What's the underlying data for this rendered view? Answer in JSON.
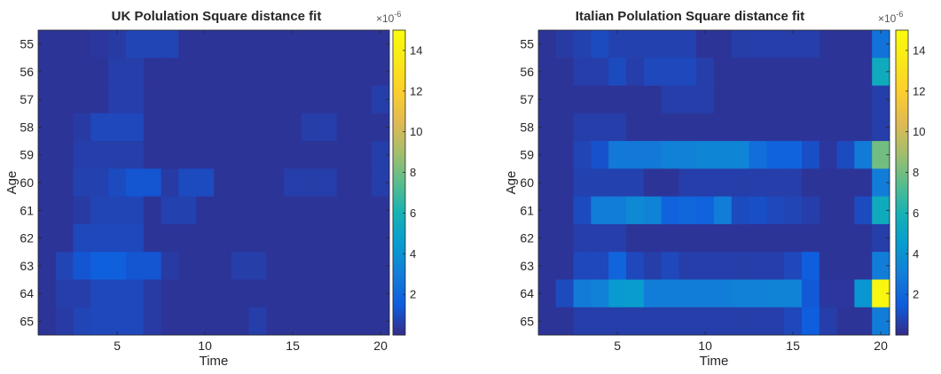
{
  "chart_data": [
    {
      "type": "heatmap",
      "title": "UK Polulation Square distance fit",
      "xlabel": "Time",
      "ylabel": "Age",
      "x_ticks": [
        5,
        10,
        15,
        20
      ],
      "y_labels": [
        "55",
        "56",
        "57",
        "58",
        "59",
        "60",
        "61",
        "62",
        "63",
        "64",
        "65"
      ],
      "colorbar_ticks": [
        "2",
        "4",
        "6",
        "8",
        "10",
        "12",
        "14"
      ],
      "colorbar_exponent": "×10",
      "colorbar_exponent_power": "-6",
      "colorbar_range": [
        0,
        15
      ],
      "colormap": "parula",
      "values": [
        [
          0.3,
          0.3,
          0.3,
          0.4,
          0.5,
          0.8,
          0.8,
          0.8,
          0.3,
          0.3,
          0.3,
          0.3,
          0.3,
          0.3,
          0.3,
          0.3,
          0.3,
          0.3,
          0.3,
          0.3
        ],
        [
          0.3,
          0.3,
          0.3,
          0.3,
          0.6,
          0.6,
          0.3,
          0.3,
          0.3,
          0.3,
          0.3,
          0.3,
          0.3,
          0.3,
          0.3,
          0.3,
          0.3,
          0.3,
          0.3,
          0.3
        ],
        [
          0.3,
          0.3,
          0.3,
          0.3,
          0.6,
          0.6,
          0.3,
          0.3,
          0.3,
          0.3,
          0.3,
          0.3,
          0.3,
          0.3,
          0.3,
          0.3,
          0.3,
          0.3,
          0.3,
          0.6
        ],
        [
          0.3,
          0.3,
          0.5,
          0.9,
          0.9,
          0.9,
          0.3,
          0.3,
          0.3,
          0.3,
          0.3,
          0.3,
          0.3,
          0.3,
          0.3,
          0.6,
          0.6,
          0.3,
          0.3,
          0.3
        ],
        [
          0.3,
          0.3,
          0.6,
          0.6,
          0.6,
          0.6,
          0.3,
          0.3,
          0.3,
          0.3,
          0.3,
          0.3,
          0.3,
          0.3,
          0.3,
          0.3,
          0.3,
          0.3,
          0.3,
          0.6
        ],
        [
          0.3,
          0.3,
          0.7,
          0.7,
          1.0,
          1.3,
          1.3,
          0.5,
          1.0,
          1.0,
          0.3,
          0.3,
          0.3,
          0.3,
          0.6,
          0.6,
          0.6,
          0.3,
          0.3,
          0.6
        ],
        [
          0.3,
          0.3,
          0.5,
          0.8,
          0.8,
          0.8,
          0.3,
          0.7,
          0.7,
          0.3,
          0.3,
          0.3,
          0.3,
          0.3,
          0.3,
          0.3,
          0.3,
          0.3,
          0.3,
          0.3
        ],
        [
          0.3,
          0.3,
          0.9,
          0.9,
          0.9,
          0.9,
          0.3,
          0.3,
          0.3,
          0.3,
          0.3,
          0.3,
          0.3,
          0.3,
          0.3,
          0.3,
          0.3,
          0.3,
          0.3,
          0.3
        ],
        [
          0.3,
          0.8,
          1.3,
          1.7,
          1.7,
          1.3,
          1.3,
          0.5,
          0.3,
          0.3,
          0.3,
          0.6,
          0.6,
          0.3,
          0.3,
          0.3,
          0.3,
          0.3,
          0.3,
          0.3
        ],
        [
          0.3,
          0.6,
          0.6,
          0.9,
          0.9,
          0.9,
          0.5,
          0.3,
          0.3,
          0.3,
          0.3,
          0.3,
          0.3,
          0.3,
          0.3,
          0.3,
          0.3,
          0.3,
          0.3,
          0.3
        ],
        [
          0.3,
          0.5,
          0.8,
          0.9,
          0.9,
          0.9,
          0.5,
          0.3,
          0.3,
          0.3,
          0.3,
          0.3,
          0.6,
          0.3,
          0.3,
          0.3,
          0.3,
          0.3,
          0.3,
          0.3
        ]
      ]
    },
    {
      "type": "heatmap",
      "title": "Italian Polulation Square distance fit",
      "xlabel": "Time",
      "ylabel": "Age",
      "x_ticks": [
        5,
        10,
        15,
        20
      ],
      "y_labels": [
        "55",
        "56",
        "57",
        "58",
        "59",
        "60",
        "61",
        "62",
        "63",
        "64",
        "65"
      ],
      "colorbar_ticks": [
        "2",
        "4",
        "6",
        "8",
        "10",
        "12",
        "14"
      ],
      "colorbar_exponent": "×10",
      "colorbar_exponent_power": "-6",
      "colorbar_range": [
        0,
        15
      ],
      "colormap": "parula",
      "values": [
        [
          0.3,
          0.5,
          0.7,
          1.0,
          0.7,
          0.7,
          0.7,
          0.7,
          0.7,
          0.3,
          0.3,
          0.6,
          0.6,
          0.6,
          0.6,
          0.6,
          0.3,
          0.3,
          0.3,
          2.5
        ],
        [
          0.3,
          0.3,
          0.6,
          0.6,
          1.0,
          0.6,
          0.9,
          0.9,
          0.9,
          0.6,
          0.3,
          0.3,
          0.3,
          0.3,
          0.3,
          0.3,
          0.3,
          0.3,
          0.3,
          5.5
        ],
        [
          0.3,
          0.3,
          0.3,
          0.3,
          0.3,
          0.3,
          0.3,
          0.6,
          0.6,
          0.6,
          0.3,
          0.3,
          0.3,
          0.3,
          0.3,
          0.3,
          0.3,
          0.3,
          0.3,
          0.6
        ],
        [
          0.3,
          0.3,
          0.6,
          0.6,
          0.6,
          0.3,
          0.3,
          0.3,
          0.3,
          0.3,
          0.3,
          0.3,
          0.3,
          0.3,
          0.3,
          0.3,
          0.3,
          0.3,
          0.3,
          0.6
        ],
        [
          0.3,
          0.3,
          0.8,
          1.2,
          2.8,
          2.8,
          2.8,
          3.2,
          3.2,
          3.4,
          3.4,
          3.4,
          2.3,
          1.8,
          1.8,
          1.1,
          0.4,
          1.0,
          2.9,
          8.0
        ],
        [
          0.3,
          0.3,
          0.7,
          0.7,
          0.7,
          0.7,
          0.3,
          0.3,
          0.6,
          0.6,
          0.6,
          0.6,
          0.6,
          0.6,
          0.6,
          0.3,
          0.3,
          0.3,
          0.3,
          3.0
        ],
        [
          0.3,
          0.3,
          1.0,
          3.0,
          3.0,
          3.6,
          3.3,
          1.8,
          2.0,
          1.8,
          3.0,
          1.0,
          1.1,
          0.9,
          0.8,
          0.6,
          0.3,
          0.3,
          1.0,
          5.5
        ],
        [
          0.3,
          0.3,
          0.6,
          0.6,
          0.6,
          0.3,
          0.3,
          0.3,
          0.3,
          0.3,
          0.3,
          0.3,
          0.3,
          0.3,
          0.3,
          0.3,
          0.3,
          0.3,
          0.3,
          0.6
        ],
        [
          0.3,
          0.3,
          0.9,
          0.9,
          1.9,
          0.9,
          0.6,
          0.9,
          0.6,
          0.6,
          0.6,
          0.6,
          0.6,
          0.6,
          0.9,
          1.6,
          0.3,
          0.3,
          0.3,
          3.0
        ],
        [
          0.3,
          1.0,
          2.9,
          3.2,
          4.4,
          4.6,
          3.0,
          3.0,
          3.0,
          3.0,
          3.0,
          3.2,
          3.2,
          3.3,
          3.3,
          1.4,
          0.4,
          0.4,
          4.2,
          14.6
        ],
        [
          0.3,
          0.3,
          0.6,
          0.6,
          0.6,
          0.6,
          0.6,
          0.6,
          0.6,
          0.6,
          0.6,
          0.6,
          0.6,
          0.6,
          0.9,
          1.6,
          0.6,
          0.3,
          0.3,
          3.0
        ]
      ]
    }
  ]
}
